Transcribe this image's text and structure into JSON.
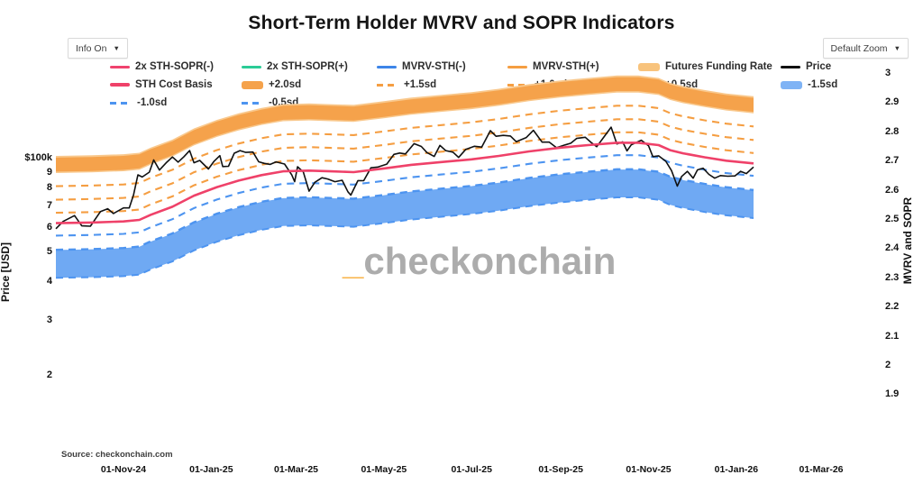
{
  "title": "Short-Term Holder MVRV and SOPR Indicators",
  "controls": {
    "info_dropdown": {
      "label": "Info On",
      "arrow": "▼"
    },
    "zoom_dropdown": {
      "label": "Default Zoom",
      "arrow": "▼"
    }
  },
  "watermark": {
    "prefix": "_",
    "name": "checkonchain"
  },
  "source": "Source: checkonchain.com",
  "legend": {
    "rows": [
      [
        {
          "label": "2x STH-SOPR(-)",
          "type": "line",
          "color": "#f0436e"
        },
        {
          "label": "2x STH-SOPR(+)",
          "type": "line",
          "color": "#2bcc96"
        },
        {
          "label": "MVRV-STH(-)",
          "type": "line",
          "color": "#3d85e8"
        },
        {
          "label": "MVRV-STH(+)",
          "type": "line",
          "color": "#f59e42"
        },
        {
          "label": "Futures Funding Rate",
          "type": "band",
          "color": "#f8c37c"
        },
        {
          "label": "Price",
          "type": "line",
          "color": "#111111"
        }
      ],
      [
        {
          "label": "STH Cost Basis",
          "type": "thick",
          "color": "#ef4169"
        },
        {
          "label": "+2.0sd",
          "type": "band",
          "color": "#f5a24b"
        },
        {
          "label": "+1.5sd",
          "type": "dash",
          "color": "#f59e42"
        },
        {
          "label": "+1.0sd",
          "type": "dash",
          "color": "#f59e42"
        },
        {
          "label": "+0.5sd",
          "type": "dash",
          "color": "#f59e42"
        },
        {
          "label": "-1.5sd",
          "type": "band",
          "color": "#7fb3f5"
        }
      ],
      [
        {
          "label": "-1.0sd",
          "type": "dash",
          "color": "#4d94f0"
        },
        {
          "label": "-0.5sd",
          "type": "dash",
          "color": "#4d94f0"
        }
      ]
    ]
  },
  "chart_data": {
    "type": "line",
    "title": "Short-Term Holder MVRV and SOPR Indicators",
    "x_axis": {
      "scale": "date",
      "range": [
        "2024-09-15",
        "2026-01-13"
      ],
      "ticks": [
        {
          "date": "2024-11-01",
          "label": "01-Nov-24"
        },
        {
          "date": "2025-01-01",
          "label": "01-Jan-25"
        },
        {
          "date": "2025-03-01",
          "label": "01-Mar-25"
        },
        {
          "date": "2025-05-01",
          "label": "01-May-25"
        },
        {
          "date": "2025-07-01",
          "label": "01-Jul-25"
        },
        {
          "date": "2025-09-01",
          "label": "01-Sep-25"
        },
        {
          "date": "2025-11-01",
          "label": "01-Nov-25"
        },
        {
          "date": "2026-01-01",
          "label": "01-Jan-26"
        },
        {
          "date": "2026-03-01",
          "label": "01-Mar-26"
        }
      ]
    },
    "y_left": {
      "label": "Price [USD]",
      "scale": "log",
      "ticks": [
        {
          "label": "$100k",
          "value": 100000
        },
        {
          "label": "9",
          "value": 90000
        },
        {
          "label": "8",
          "value": 80000
        },
        {
          "label": "7",
          "value": 70000
        },
        {
          "label": "6",
          "value": 60000
        },
        {
          "label": "5",
          "value": 50000
        },
        {
          "label": "4",
          "value": 40000
        },
        {
          "label": "3",
          "value": 30000
        },
        {
          "label": "2",
          "value": 20000
        }
      ]
    },
    "y_right": {
      "label": "MVRV and SOPR",
      "scale": "linear",
      "ticks": [
        "3",
        "2.9",
        "2.8",
        "2.7",
        "2.6",
        "2.5",
        "2.4",
        "2.3",
        "2.2",
        "2.1",
        "2",
        "1.9"
      ]
    },
    "cost_basis": [
      [
        "2024-09-15",
        62000
      ],
      [
        "2024-10-10",
        62300
      ],
      [
        "2024-11-01",
        62800
      ],
      [
        "2024-11-12",
        63500
      ],
      [
        "2024-11-20",
        66000
      ],
      [
        "2024-12-05",
        70000
      ],
      [
        "2024-12-20",
        76000
      ],
      [
        "2025-01-05",
        81000
      ],
      [
        "2025-01-20",
        85000
      ],
      [
        "2025-02-05",
        88500
      ],
      [
        "2025-02-20",
        91000
      ],
      [
        "2025-03-10",
        91500
      ],
      [
        "2025-03-25",
        91000
      ],
      [
        "2025-04-10",
        90500
      ],
      [
        "2025-05-01",
        93000
      ],
      [
        "2025-05-20",
        95500
      ],
      [
        "2025-06-10",
        97500
      ],
      [
        "2025-07-01",
        99500
      ],
      [
        "2025-07-20",
        102000
      ],
      [
        "2025-08-10",
        105500
      ],
      [
        "2025-09-01",
        108500
      ],
      [
        "2025-09-20",
        110500
      ],
      [
        "2025-10-10",
        112500
      ],
      [
        "2025-10-25",
        112500
      ],
      [
        "2025-11-08",
        110500
      ],
      [
        "2025-11-16",
        106500
      ],
      [
        "2025-11-25",
        104000
      ],
      [
        "2025-12-10",
        101000
      ],
      [
        "2025-12-25",
        98500
      ],
      [
        "2026-01-13",
        96500
      ]
    ],
    "price": [
      [
        "2024-09-15",
        59500
      ],
      [
        "2024-09-20",
        62800
      ],
      [
        "2024-09-28",
        65600
      ],
      [
        "2024-10-03",
        60800
      ],
      [
        "2024-10-09",
        60600
      ],
      [
        "2024-10-16",
        67600
      ],
      [
        "2024-10-21",
        69000
      ],
      [
        "2024-10-25",
        66600
      ],
      [
        "2024-11-01",
        69400
      ],
      [
        "2024-11-05",
        69400
      ],
      [
        "2024-11-08",
        76500
      ],
      [
        "2024-11-11",
        88700
      ],
      [
        "2024-11-14",
        87300
      ],
      [
        "2024-11-19",
        90500
      ],
      [
        "2024-11-22",
        99000
      ],
      [
        "2024-11-26",
        91900
      ],
      [
        "2024-12-01",
        97300
      ],
      [
        "2024-12-05",
        101200
      ],
      [
        "2024-12-09",
        97400
      ],
      [
        "2024-12-13",
        101400
      ],
      [
        "2024-12-17",
        106100
      ],
      [
        "2024-12-20",
        97000
      ],
      [
        "2024-12-24",
        98700
      ],
      [
        "2024-12-30",
        92600
      ],
      [
        "2025-01-03",
        98100
      ],
      [
        "2025-01-07",
        102200
      ],
      [
        "2025-01-09",
        94300
      ],
      [
        "2025-01-13",
        94500
      ],
      [
        "2025-01-17",
        104100
      ],
      [
        "2025-01-21",
        106100
      ],
      [
        "2025-01-25",
        104700
      ],
      [
        "2025-01-30",
        105000
      ],
      [
        "2025-02-03",
        97700
      ],
      [
        "2025-02-07",
        96500
      ],
      [
        "2025-02-11",
        95800
      ],
      [
        "2025-02-15",
        97600
      ],
      [
        "2025-02-21",
        96100
      ],
      [
        "2025-02-26",
        88600
      ],
      [
        "2025-02-28",
        84300
      ],
      [
        "2025-03-02",
        94200
      ],
      [
        "2025-03-06",
        90600
      ],
      [
        "2025-03-10",
        78600
      ],
      [
        "2025-03-14",
        83900
      ],
      [
        "2025-03-19",
        86800
      ],
      [
        "2025-03-23",
        86000
      ],
      [
        "2025-03-28",
        84300
      ],
      [
        "2025-04-02",
        85200
      ],
      [
        "2025-04-06",
        78200
      ],
      [
        "2025-04-08",
        76300
      ],
      [
        "2025-04-13",
        85000
      ],
      [
        "2025-04-17",
        84900
      ],
      [
        "2025-04-22",
        93400
      ],
      [
        "2025-04-27",
        94000
      ],
      [
        "2025-05-03",
        96000
      ],
      [
        "2025-05-08",
        103200
      ],
      [
        "2025-05-12",
        104200
      ],
      [
        "2025-05-16",
        103500
      ],
      [
        "2025-05-22",
        111700
      ],
      [
        "2025-05-27",
        109400
      ],
      [
        "2025-05-31",
        104600
      ],
      [
        "2025-06-05",
        101600
      ],
      [
        "2025-06-09",
        110300
      ],
      [
        "2025-06-13",
        106100
      ],
      [
        "2025-06-18",
        104900
      ],
      [
        "2025-06-22",
        100900
      ],
      [
        "2025-06-27",
        107100
      ],
      [
        "2025-07-03",
        109600
      ],
      [
        "2025-07-08",
        108900
      ],
      [
        "2025-07-14",
        123000
      ],
      [
        "2025-07-18",
        118000
      ],
      [
        "2025-07-23",
        118800
      ],
      [
        "2025-07-28",
        118200
      ],
      [
        "2025-08-01",
        113400
      ],
      [
        "2025-08-08",
        116900
      ],
      [
        "2025-08-13",
        123300
      ],
      [
        "2025-08-19",
        113000
      ],
      [
        "2025-08-24",
        113000
      ],
      [
        "2025-08-29",
        108400
      ],
      [
        "2025-09-04",
        110700
      ],
      [
        "2025-09-08",
        112100
      ],
      [
        "2025-09-12",
        116100
      ],
      [
        "2025-09-18",
        117100
      ],
      [
        "2025-09-22",
        112800
      ],
      [
        "2025-09-26",
        109200
      ],
      [
        "2025-10-01",
        117400
      ],
      [
        "2025-10-06",
        126200
      ],
      [
        "2025-10-10",
        111500
      ],
      [
        "2025-10-14",
        113200
      ],
      [
        "2025-10-17",
        105900
      ],
      [
        "2025-10-20",
        110800
      ],
      [
        "2025-10-27",
        114600
      ],
      [
        "2025-11-01",
        110000
      ],
      [
        "2025-11-04",
        101500
      ],
      [
        "2025-11-08",
        102100
      ],
      [
        "2025-11-13",
        98000
      ],
      [
        "2025-11-17",
        91500
      ],
      [
        "2025-11-21",
        81600
      ],
      [
        "2025-11-24",
        87600
      ],
      [
        "2025-11-28",
        91000
      ],
      [
        "2025-12-02",
        86500
      ],
      [
        "2025-12-05",
        92000
      ],
      [
        "2025-12-09",
        93100
      ],
      [
        "2025-12-13",
        89000
      ],
      [
        "2025-12-17",
        86500
      ],
      [
        "2025-12-21",
        88200
      ],
      [
        "2025-12-26",
        87800
      ],
      [
        "2025-12-31",
        88000
      ],
      [
        "2026-01-04",
        91000
      ],
      [
        "2026-01-08",
        89500
      ],
      [
        "2026-01-13",
        94000
      ]
    ],
    "band_series": [
      {
        "name": "Futures Funding Rate",
        "type": "band",
        "color": "#f9c88c",
        "mult": [
          1.45,
          1.645
        ]
      },
      {
        "name": "+2.0sd",
        "type": "band",
        "color": "#f5a24b",
        "mult": [
          1.465,
          1.625
        ]
      },
      {
        "name": "+1.5sd",
        "type": "dash",
        "color": "#f59e42",
        "mult": 1.315
      },
      {
        "name": "+1.0sd",
        "type": "dash",
        "color": "#f59e42",
        "mult": 1.19
      },
      {
        "name": "+0.5sd",
        "type": "dash",
        "color": "#f59e42",
        "mult": 1.08
      },
      {
        "name": "-1.5sd",
        "type": "band",
        "color": "#6fa9f3",
        "mult": [
          0.667,
          0.82
        ],
        "edge_dash": true,
        "edge_color": "#4d94f0"
      },
      {
        "name": "-1.0sd",
        "type": "dash",
        "color": "#4d94f0",
        "mult": 0.822
      },
      {
        "name": "-0.5sd",
        "type": "dash",
        "color": "#4d94f0",
        "mult": 0.912
      }
    ],
    "line_series": [
      {
        "name": "Price",
        "source": "price",
        "color": "#111111",
        "width": 1.6
      },
      {
        "name": "STH Cost Basis",
        "source": "cost_basis",
        "color": "#ef4169",
        "width": 2.6
      }
    ]
  }
}
